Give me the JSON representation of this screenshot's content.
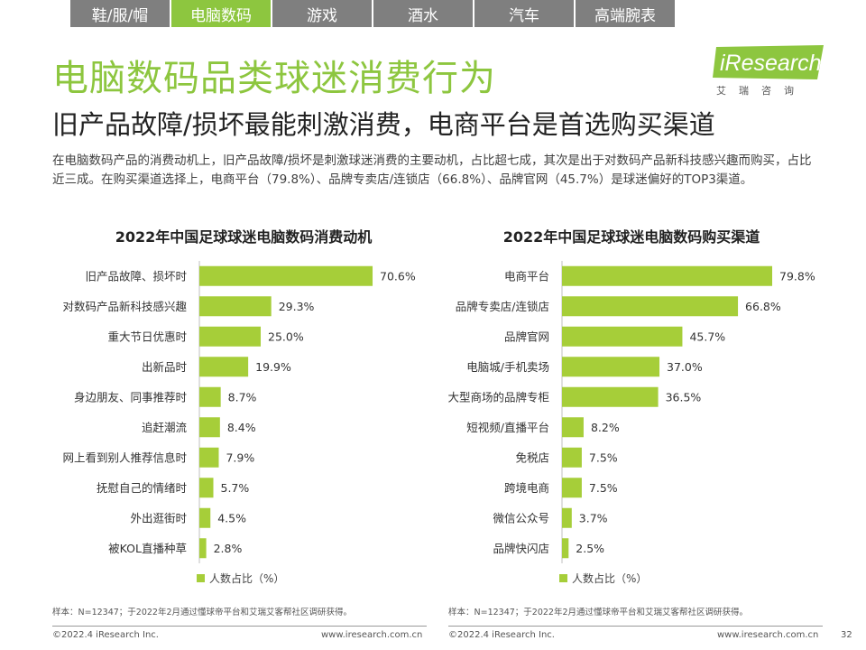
{
  "tabs": [
    "鞋/服/帽",
    "电脑数码",
    "游戏",
    "酒水",
    "汽车",
    "高端腕表"
  ],
  "active_tab": 1,
  "title": "电脑数码品类球迷消费行为",
  "subtitle": "旧产品故障/损坏最能刺激消费，电商平台是首选购买渠道",
  "description": "在电脑数码产品的消费动机上，旧产品故障/损坏是刺激球迷消费的主要动机，占比超七成，其次是出于对数码产品新科技感兴趣而购买，占比近三成。在购买渠道选择上，电商平台（79.8%）、品牌专卖店/连锁店（66.8%）、品牌官网（45.7%）是球迷偏好的TOP3渠道。",
  "logo": {
    "text": "iResearch",
    "sub": "艾瑞咨询",
    "color": "#8dc63f"
  },
  "colors": {
    "accent": "#8dc63f",
    "bar": "#a6ce39"
  },
  "chart_data": [
    {
      "type": "bar",
      "orientation": "horizontal",
      "title": "2022年中国足球球迷电脑数码消费动机",
      "categories": [
        "旧产品故障、损坏时",
        "对数码产品新科技感兴趣",
        "重大节日优惠时",
        "出新品时",
        "身边朋友、同事推荐时",
        "追赶潮流",
        "网上看到别人推荐信息时",
        "抚慰自己的情绪时",
        "外出逛街时",
        "被KOL直播种草"
      ],
      "series": [
        {
          "name": "人数占比（%）",
          "values": [
            70.6,
            29.3,
            25.0,
            19.9,
            8.7,
            8.4,
            7.9,
            5.7,
            4.5,
            2.8
          ]
        }
      ],
      "xlim": [
        0,
        85
      ],
      "legend": "bottom-left",
      "grid": false
    },
    {
      "type": "bar",
      "orientation": "horizontal",
      "title": "2022年中国足球球迷电脑数码购买渠道",
      "categories": [
        "电商平台",
        "品牌专卖店/连锁店",
        "品牌官网",
        "电脑城/手机卖场",
        "大型商场的品牌专柜",
        "短视频/直播平台",
        "免税店",
        "跨境电商",
        "微信公众号",
        "品牌快闪店"
      ],
      "series": [
        {
          "name": "人数占比（%）",
          "values": [
            79.8,
            66.8,
            45.7,
            37.0,
            36.5,
            8.2,
            7.5,
            7.5,
            3.7,
            2.5
          ]
        }
      ],
      "xlim": [
        0,
        85
      ],
      "legend": "bottom-left",
      "grid": false
    }
  ],
  "notes": [
    "样本：N=12347；于2022年2月通过懂球帝平台和艾瑞艾客帮社区调研获得。",
    "样本：N=12347；于2022年2月通过懂球帝平台和艾瑞艾客帮社区调研获得。"
  ],
  "footer": {
    "copyright": "©2022.4 iResearch Inc.",
    "website": "www.iresearch.com.cn",
    "page": "32"
  }
}
